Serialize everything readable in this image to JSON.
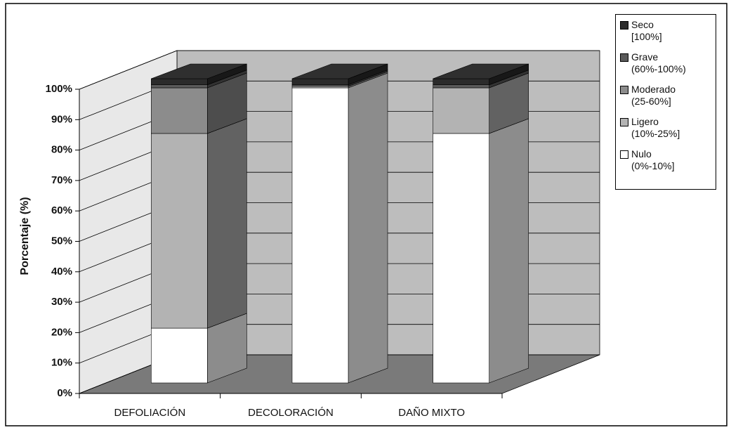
{
  "chart_data": {
    "type": "bar3d_stacked",
    "y_label": "Porcentaje (%)",
    "categories": [
      "DEFOLIACIÓN",
      "DECOLORACIÓN",
      "DAÑO MIXTO"
    ],
    "series": [
      {
        "name": "Nulo\n(0%-10%]",
        "color": "#ffffff",
        "values": [
          18,
          97,
          82
        ]
      },
      {
        "name": "Ligero\n(10%-25%]",
        "color": "#b3b3b3",
        "values": [
          64,
          0.5,
          15
        ]
      },
      {
        "name": "Moderado\n(25-60%]",
        "color": "#8c8c8c",
        "values": [
          15,
          0,
          0
        ]
      },
      {
        "name": "Grave\n(60%-100%)",
        "color": "#5a5a5a",
        "values": [
          1,
          0.5,
          1
        ]
      },
      {
        "name": "Seco\n[100%]",
        "color": "#2b2b2b",
        "values": [
          2,
          2,
          2
        ]
      }
    ],
    "ylim": [
      0,
      100
    ],
    "yticks": [
      {
        "value": 0,
        "label": "0%"
      },
      {
        "value": 10,
        "label": "10%"
      },
      {
        "value": 20,
        "label": "20%"
      },
      {
        "value": 30,
        "label": "30%"
      },
      {
        "value": 40,
        "label": "40%"
      },
      {
        "value": 50,
        "label": "50%"
      },
      {
        "value": 60,
        "label": "60%"
      },
      {
        "value": 70,
        "label": "70%"
      },
      {
        "value": 80,
        "label": "80%"
      },
      {
        "value": 90,
        "label": "90%"
      },
      {
        "value": 100,
        "label": "100%"
      }
    ],
    "grid": true
  }
}
